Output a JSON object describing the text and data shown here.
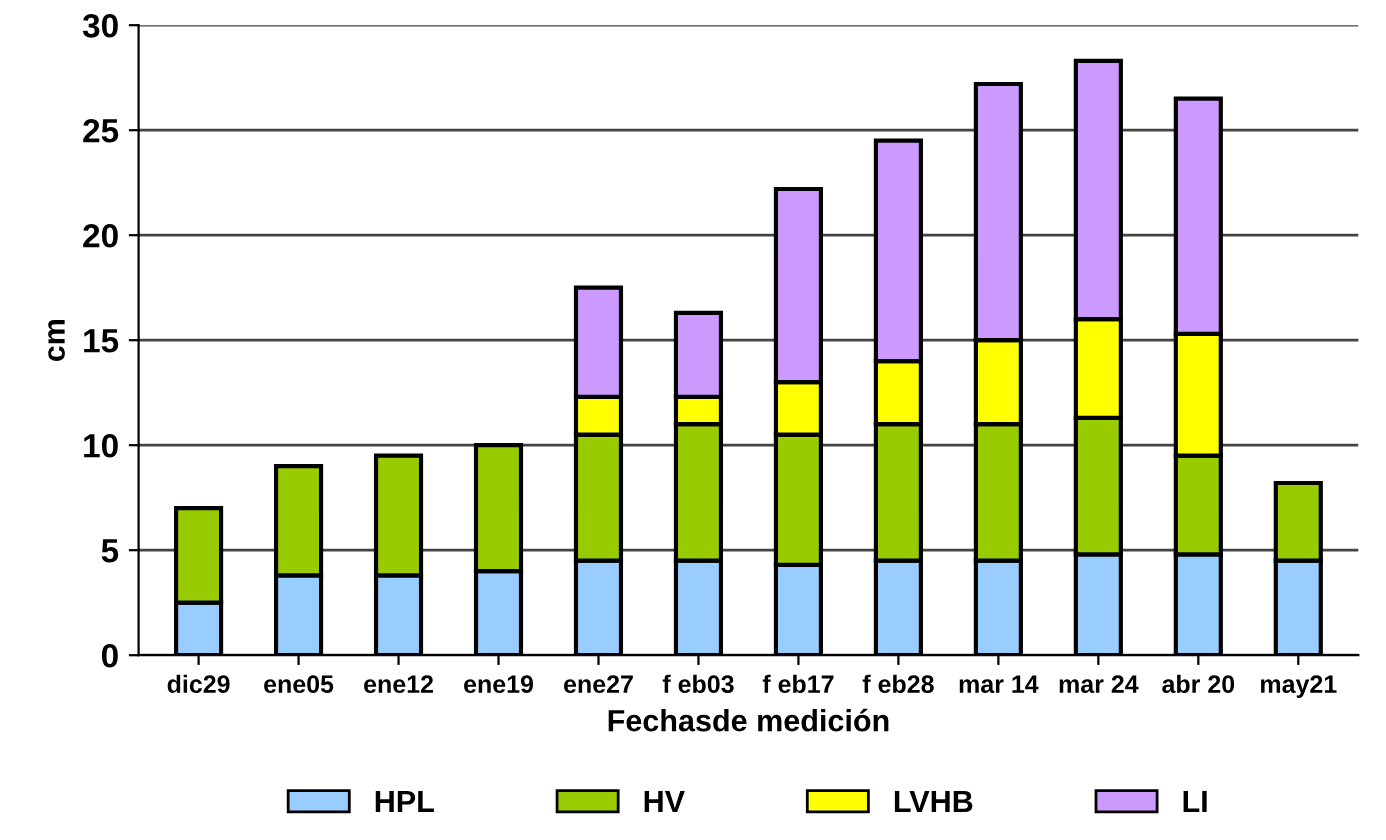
{
  "chart_data": {
    "type": "bar",
    "stacked": true,
    "xlabel": "Fechasde medición",
    "ylabel": "cm",
    "categories": [
      "dic29",
      "ene05",
      "ene12",
      "ene19",
      "ene27",
      "f eb03",
      "f eb17",
      "f eb28",
      "mar 14",
      "mar 24",
      "abr 20",
      "may21"
    ],
    "series": [
      {
        "name": "HPL",
        "color": "#99ccff",
        "values": [
          2.5,
          3.8,
          3.8,
          4.0,
          4.5,
          4.5,
          4.3,
          4.5,
          4.5,
          4.8,
          4.8,
          4.5
        ]
      },
      {
        "name": "HV",
        "color": "#99cc00",
        "values": [
          4.5,
          5.2,
          5.7,
          6.0,
          6.0,
          6.5,
          6.2,
          6.5,
          6.5,
          6.5,
          4.7,
          3.7
        ]
      },
      {
        "name": "LVHB",
        "color": "#ffff00",
        "values": [
          null,
          null,
          null,
          null,
          1.8,
          1.3,
          2.5,
          3.0,
          4.0,
          4.7,
          5.8,
          null
        ]
      },
      {
        "name": "LI",
        "color": "#cc99ff",
        "values": [
          null,
          null,
          null,
          null,
          5.2,
          4.0,
          9.2,
          10.5,
          12.2,
          12.3,
          11.2,
          null
        ]
      }
    ],
    "ylim": [
      0,
      30
    ],
    "yticks": [
      0,
      5,
      10,
      15,
      20,
      25,
      30
    ],
    "grid": "y",
    "legend": "bottom"
  }
}
